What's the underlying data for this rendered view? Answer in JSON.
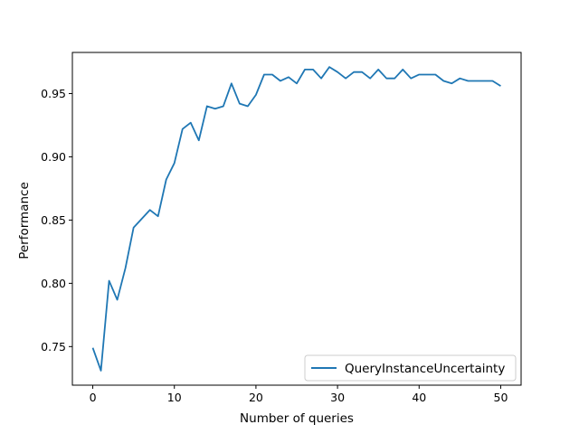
{
  "chart_data": {
    "type": "line",
    "title": "",
    "xlabel": "Number of queries",
    "ylabel": "Performance",
    "xlim": [
      -2.5,
      52.5
    ],
    "ylim": [
      0.7195,
      0.9825
    ],
    "xticks": [
      0,
      10,
      20,
      30,
      40,
      50
    ],
    "yticks": [
      0.75,
      0.8,
      0.85,
      0.9,
      0.95
    ],
    "grid": false,
    "legend": {
      "placement": "lower-right"
    },
    "series": [
      {
        "name": "QueryInstanceUncertainty",
        "color": "#1f77b4",
        "x": [
          0,
          1,
          2,
          3,
          4,
          5,
          6,
          7,
          8,
          9,
          10,
          11,
          12,
          13,
          14,
          15,
          16,
          17,
          18,
          19,
          20,
          21,
          22,
          23,
          24,
          25,
          26,
          27,
          28,
          29,
          30,
          31,
          32,
          33,
          34,
          35,
          36,
          37,
          38,
          39,
          40,
          41,
          42,
          43,
          44,
          45,
          46,
          47,
          48,
          49,
          50
        ],
        "y": [
          0.749,
          0.731,
          0.802,
          0.787,
          0.812,
          0.844,
          0.851,
          0.858,
          0.853,
          0.882,
          0.895,
          0.922,
          0.927,
          0.913,
          0.94,
          0.938,
          0.94,
          0.958,
          0.942,
          0.94,
          0.949,
          0.965,
          0.965,
          0.96,
          0.963,
          0.958,
          0.969,
          0.969,
          0.962,
          0.971,
          0.967,
          0.962,
          0.967,
          0.967,
          0.962,
          0.969,
          0.962,
          0.962,
          0.969,
          0.962,
          0.965,
          0.965,
          0.965,
          0.96,
          0.958,
          0.962,
          0.96,
          0.96,
          0.96,
          0.96,
          0.956
        ]
      }
    ]
  }
}
